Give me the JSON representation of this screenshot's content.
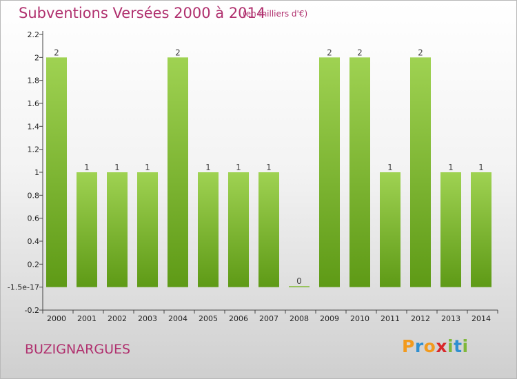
{
  "chart_data": {
    "type": "bar",
    "title": "Subventions Versées 2000 à 2014",
    "subtitle": "(en milliers d'€)",
    "categories": [
      "2000",
      "2001",
      "2002",
      "2003",
      "2004",
      "2005",
      "2006",
      "2007",
      "2008",
      "2009",
      "2010",
      "2011",
      "2012",
      "2013",
      "2014"
    ],
    "values": [
      2,
      1,
      1,
      1,
      2,
      1,
      1,
      1,
      0,
      2,
      2,
      1,
      2,
      1,
      1
    ],
    "value_labels": [
      "2",
      "1",
      "1",
      "1",
      "2",
      "1",
      "1",
      "1",
      "0",
      "2",
      "2",
      "1",
      "2",
      "1",
      "1"
    ],
    "ylim": [
      -0.2,
      2.2
    ],
    "yticks": [
      {
        "value": -0.2,
        "label": "-0.2"
      },
      {
        "value": 0,
        "label": "-1.5e-17"
      },
      {
        "value": 0.2,
        "label": "0.2"
      },
      {
        "value": 0.4,
        "label": "0.4"
      },
      {
        "value": 0.6,
        "label": "0.6"
      },
      {
        "value": 0.8,
        "label": "0.8"
      },
      {
        "value": 1.0,
        "label": "1"
      },
      {
        "value": 1.2,
        "label": "1.2"
      },
      {
        "value": 1.4,
        "label": "1.4"
      },
      {
        "value": 1.6,
        "label": "1.6"
      },
      {
        "value": 1.8,
        "label": "1.8"
      },
      {
        "value": 2.0,
        "label": "2"
      },
      {
        "value": 2.2,
        "label": "2.2"
      }
    ],
    "grid": false,
    "legend": "none",
    "colors": {
      "bar_light": "#9fd252",
      "bar_dark": "#5e9a16",
      "axis": "#444444"
    }
  },
  "footer": {
    "commune": "BUZIGNARGUES",
    "logo": "Proxiti",
    "logo_colors": [
      "#f29a1d",
      "#2f8fd1",
      "#f29a1d",
      "#d8282b",
      "#7fb83a",
      "#2f8fd1",
      "#7fb83a"
    ]
  }
}
